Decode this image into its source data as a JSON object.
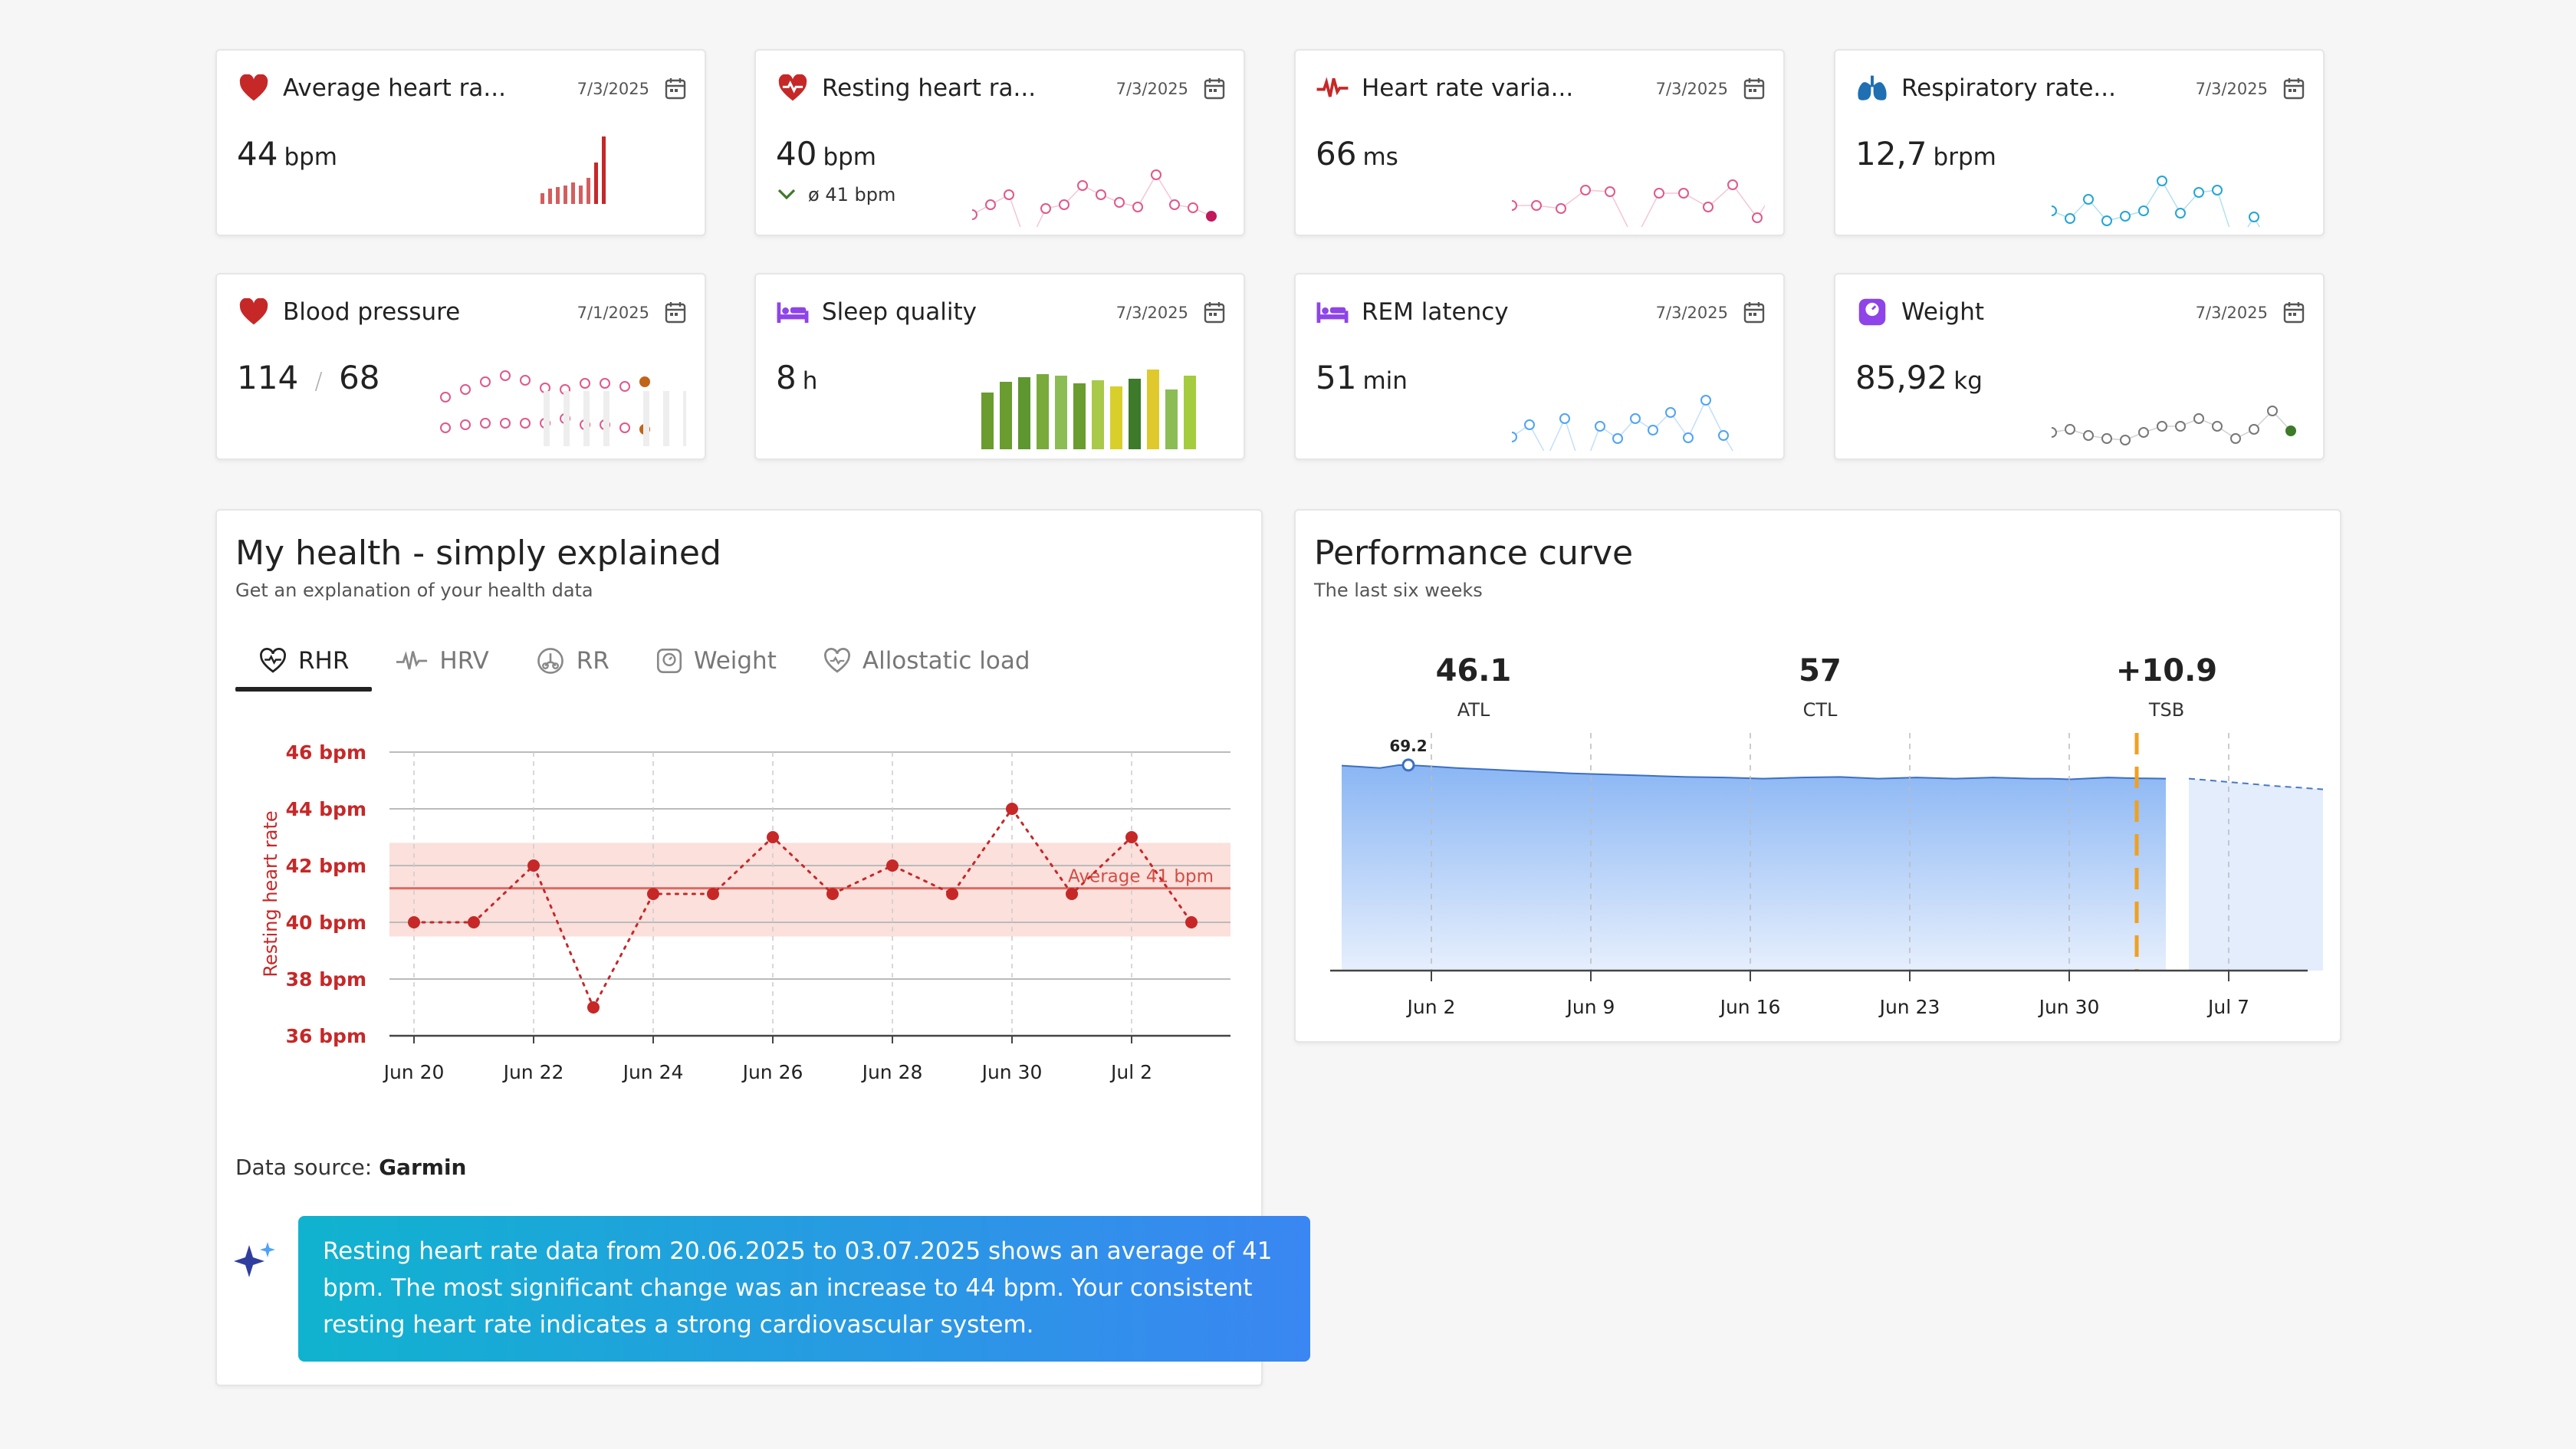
{
  "tiles": [
    {
      "title": "Average heart ra...",
      "date": "7/3/2025",
      "value": "44",
      "unit": "bpm",
      "icon": "heart-icon"
    },
    {
      "title": "Resting heart ra...",
      "date": "7/3/2025",
      "value": "40",
      "unit": "bpm",
      "sub": "ø 41 bpm",
      "icon": "heart-pulse-icon"
    },
    {
      "title": "Heart rate varia...",
      "date": "7/3/2025",
      "value": "66",
      "unit": "ms",
      "icon": "pulse-line-icon"
    },
    {
      "title": "Respiratory rate...",
      "date": "7/3/2025",
      "value": "12,7",
      "unit": "brpm",
      "icon": "lungs-icon"
    },
    {
      "title": "Blood pressure",
      "date": "7/1/2025",
      "value": "114",
      "value2": "68",
      "sep": "/",
      "icon": "heart-icon"
    },
    {
      "title": "Sleep quality",
      "date": "7/3/2025",
      "value": "8",
      "unit": "h",
      "icon": "bed-icon"
    },
    {
      "title": "REM latency",
      "date": "7/3/2025",
      "value": "51",
      "unit": "min",
      "icon": "bed-icon"
    },
    {
      "title": "Weight",
      "date": "7/3/2025",
      "value": "85,92",
      "unit": "kg",
      "icon": "scale-icon"
    }
  ],
  "colors": {
    "heart": "#c62828",
    "pink": "#e0588a",
    "blue_light": "#23a5d6",
    "purple": "#8e44e8",
    "gray": "#777777",
    "green_dark": "#3d7a2a",
    "sleep_bars": [
      "#6a9c2f",
      "#6a9c2f",
      "#5e9630",
      "#7aaa3c",
      "#8cbd55",
      "#6a9c2f",
      "#a8c94a",
      "#d8cf2a",
      "#3d7a2a",
      "#e0c92c",
      "#8cbd55",
      "#a4cc3e"
    ],
    "band": "#fbe0dc",
    "avg_line": "#e06a62",
    "area_top": "#8ab6f4",
    "area_bottom": "#e6effd",
    "tsb_line": "#f0a020",
    "ai_grad_start": "#10b3cf",
    "ai_grad_end": "#3a86f2"
  },
  "health": {
    "title": "My health - simply explained",
    "subtitle": "Get an explanation of your health data",
    "tabs": [
      {
        "label": "RHR",
        "icon": "heart-pulse-outline-icon"
      },
      {
        "label": "HRV",
        "icon": "pulse-line-icon"
      },
      {
        "label": "RR",
        "icon": "lungs-outline-icon"
      },
      {
        "label": "Weight",
        "icon": "scale-outline-icon"
      },
      {
        "label": "Allostatic load",
        "icon": "heart-outline-icon"
      }
    ],
    "data_source_label": "Data source:",
    "data_source": "Garmin",
    "ai_text": "Resting heart rate data from 20.06.2025 to 03.07.2025 shows an average of 41 bpm. The most significant change was an increase to 44 bpm. Your consistent resting heart rate indicates a strong cardiovascular system."
  },
  "performance": {
    "title": "Performance curve",
    "subtitle": "The last six weeks",
    "metrics": [
      {
        "value": "46.1",
        "label": "ATL"
      },
      {
        "value": "57",
        "label": "CTL"
      },
      {
        "value": "+10.9",
        "label": "TSB"
      }
    ]
  },
  "chart_data": [
    {
      "type": "line",
      "ylabel": "Resting heart rate",
      "ylim": [
        36,
        46
      ],
      "yticks": [
        "36 bpm",
        "38 bpm",
        "40 bpm",
        "42 bpm",
        "44 bpm",
        "46 bpm"
      ],
      "xticks": [
        "Jun 20",
        "Jun 22",
        "Jun 24",
        "Jun 26",
        "Jun 28",
        "Jun 30",
        "Jul 2"
      ],
      "x": [
        "Jun 20",
        "Jun 21",
        "Jun 22",
        "Jun 23",
        "Jun 24",
        "Jun 25",
        "Jun 26",
        "Jun 27",
        "Jun 28",
        "Jun 29",
        "Jun 30",
        "Jul 1",
        "Jul 2",
        "Jul 3"
      ],
      "values": [
        40,
        40,
        42,
        37,
        41,
        41,
        43,
        41,
        42,
        41,
        44,
        41,
        43,
        40
      ],
      "average": 41.2,
      "average_label": "Average 41 bpm",
      "band": [
        39.5,
        42.8
      ],
      "grid": true
    },
    {
      "type": "area",
      "xticks": [
        "Jun 2",
        "Jun 9",
        "Jun 16",
        "Jun 23",
        "Jun 30",
        "Jul 7"
      ],
      "annotation": "69.2",
      "values": [
        69,
        68.6,
        68.2,
        69.2,
        69,
        68.6,
        68.2,
        67.9,
        67.6,
        67.3,
        67,
        66.7,
        66.4,
        66.2,
        66,
        65.8,
        65.6,
        65.4,
        65.2,
        65.1,
        65,
        64.8,
        64.6,
        64.8,
        65,
        65.1,
        65.2,
        64.9,
        64.6,
        64.8,
        65,
        64.8,
        64.6,
        64.8,
        65,
        64.8,
        64.6,
        64.6,
        64.4,
        64.7,
        65,
        64.8,
        64.7,
        64.6
      ],
      "forecast": [
        64.6,
        64.1,
        63.5,
        63,
        62.4,
        61.9,
        61.5,
        61
      ],
      "ylim": [
        0,
        80
      ]
    }
  ]
}
